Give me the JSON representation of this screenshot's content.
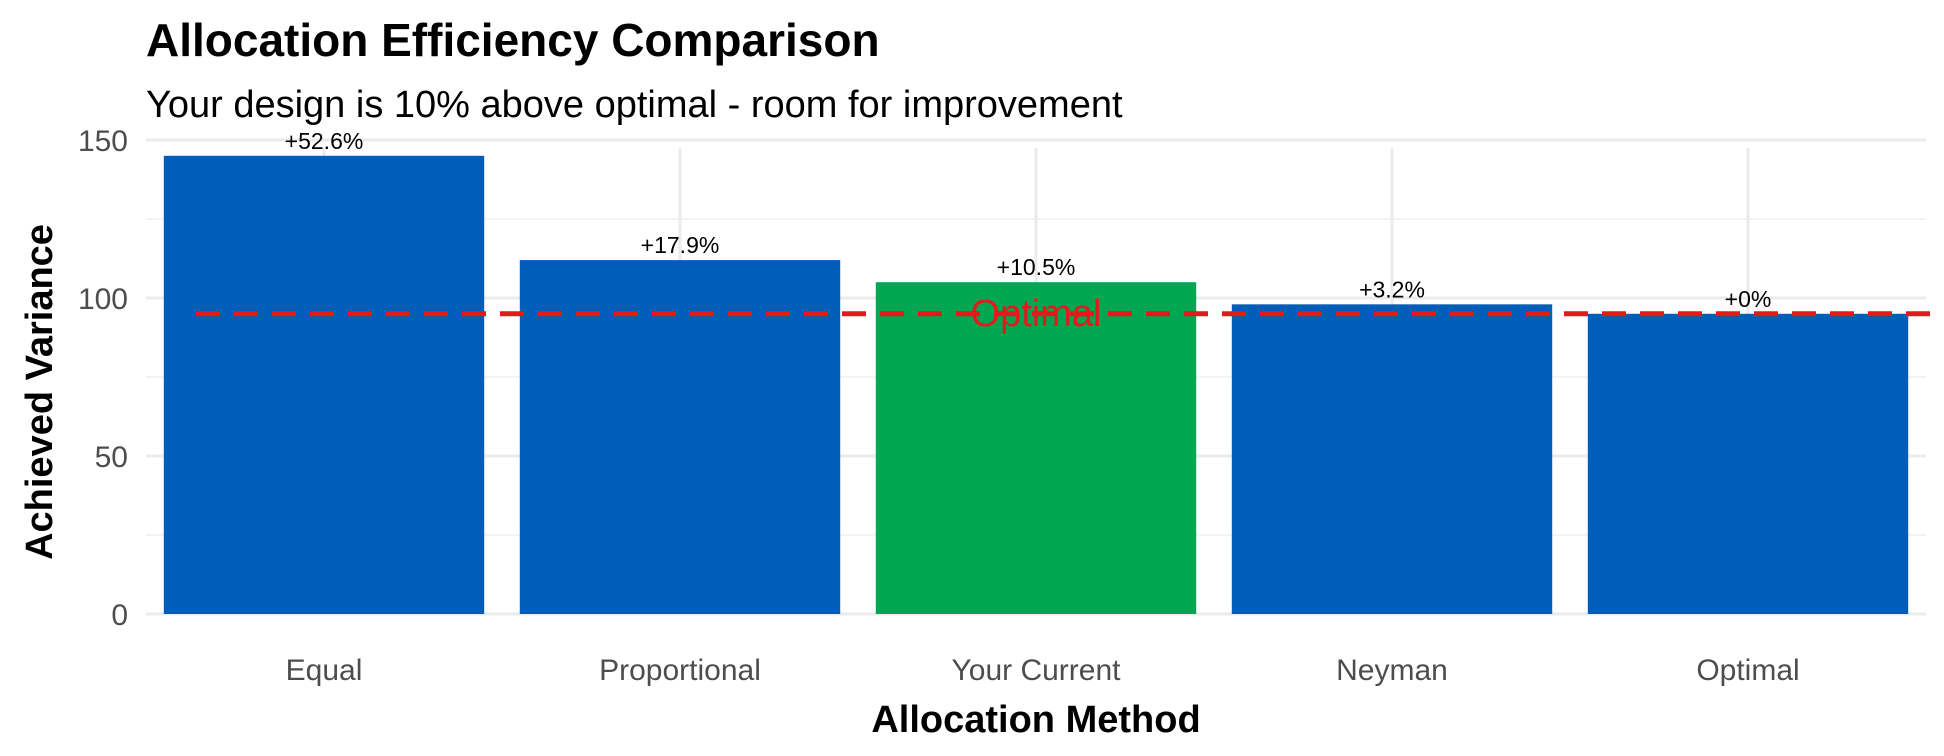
{
  "chart_data": {
    "type": "bar",
    "title": "Allocation Efficiency Comparison",
    "subtitle": "Your design is 10% above optimal - room for improvement",
    "xlabel": "Allocation Method",
    "ylabel": "Achieved Variance",
    "categories": [
      "Equal",
      "Proportional",
      "Your Current",
      "Neyman",
      "Optimal"
    ],
    "values": [
      145,
      112,
      105,
      98,
      95
    ],
    "data_labels": [
      "+52.6%",
      "+17.9%",
      "+10.5%",
      "+3.2%",
      "+0%"
    ],
    "highlight_index": 2,
    "colors": {
      "bar": "#005EB8",
      "highlight": "#00A651",
      "reference": "#E31A1C",
      "grid_major": "#EBEBEB",
      "grid_minor": "#F3F3F3"
    },
    "ylim": [
      0,
      150
    ],
    "yticks": [
      0,
      50,
      100,
      150
    ],
    "grid": true,
    "legend": "none",
    "reference_line": {
      "value": 95,
      "label": "Optimal",
      "style": "dashed"
    }
  }
}
